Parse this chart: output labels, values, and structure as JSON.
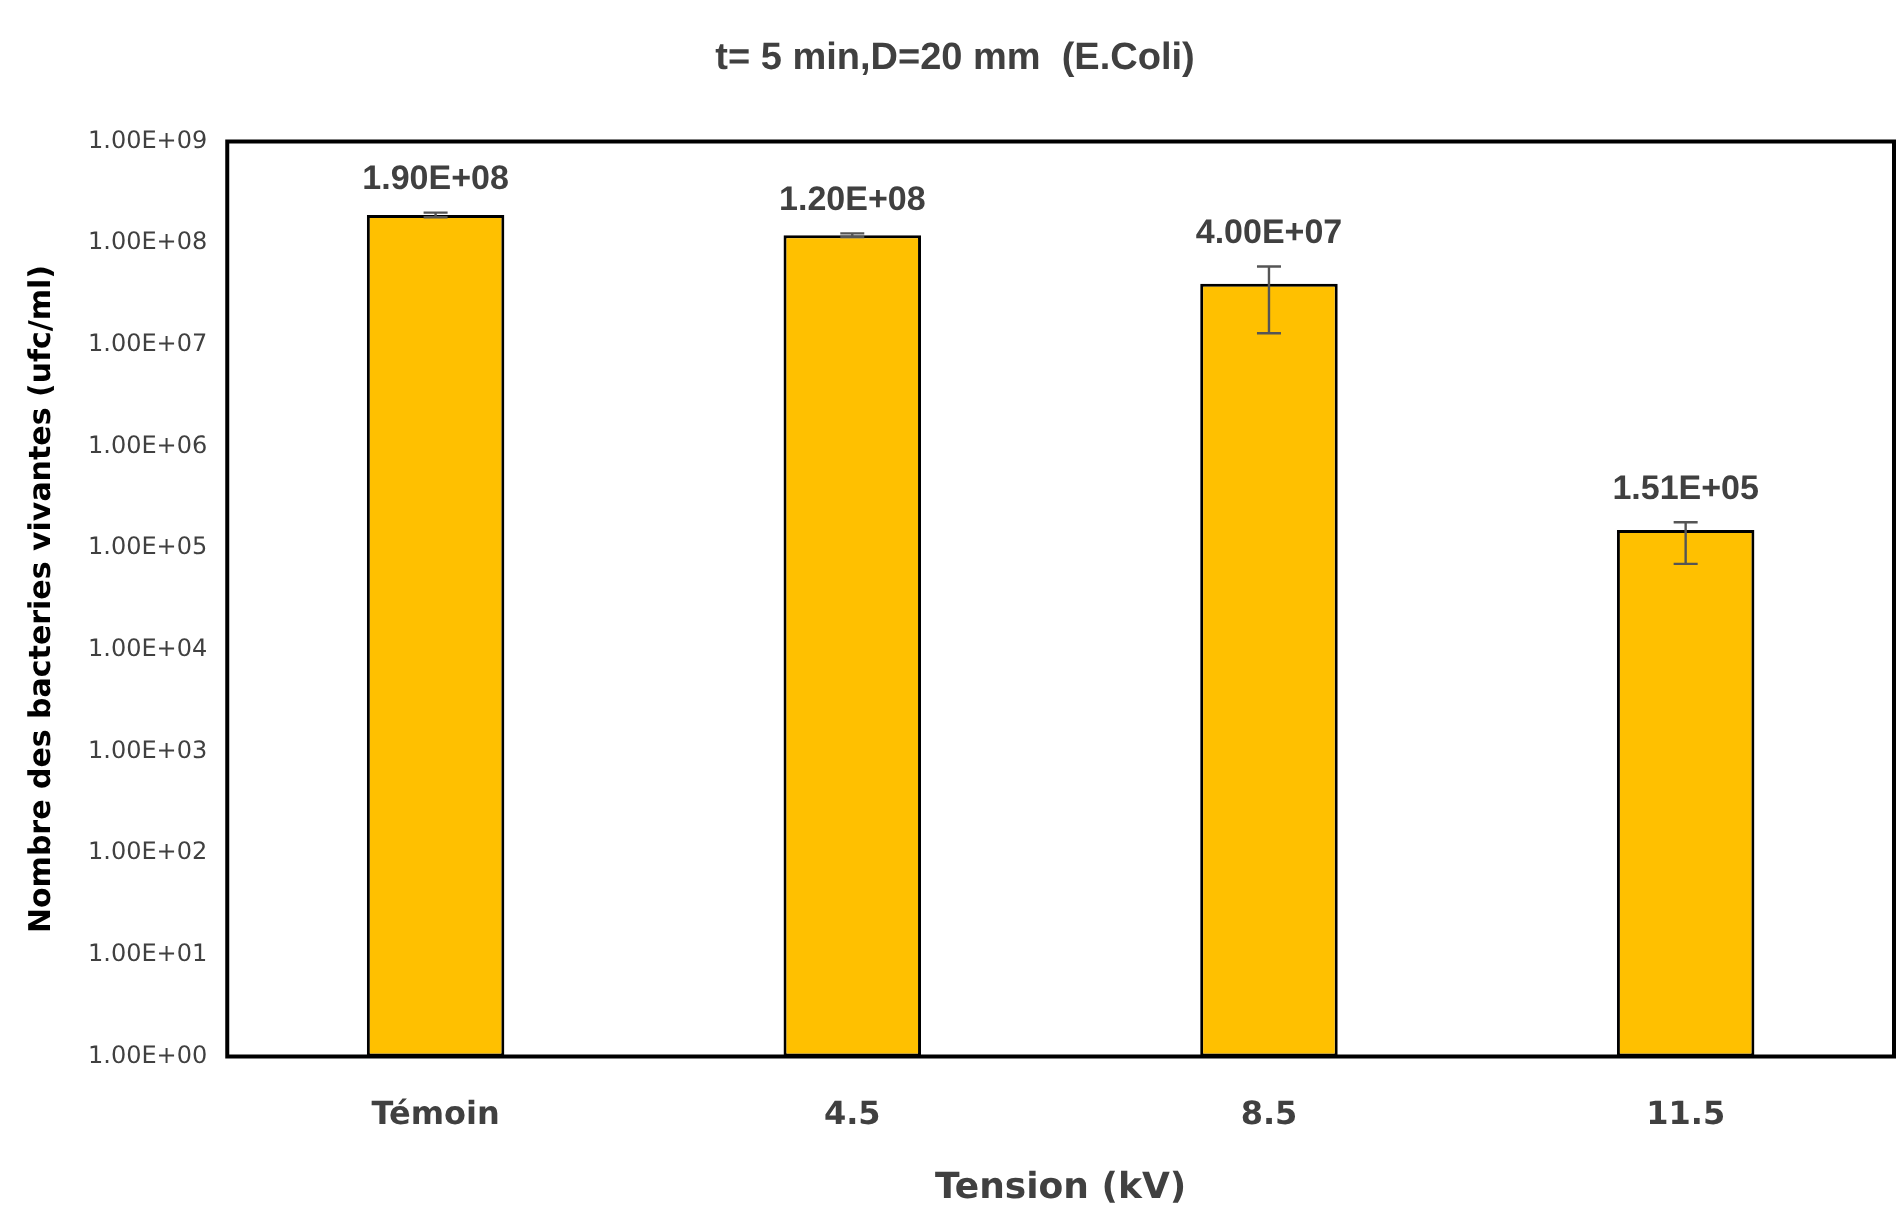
{
  "chart_data": {
    "type": "bar",
    "title": "t= 5 min,D=20 mm  (E.Coli)",
    "xlabel": "Tension (kV)",
    "ylabel": "Nombre des bacteries vivantes (ufc/ml)",
    "categories": [
      "Témoin",
      "4.5",
      "8.5",
      "11.5"
    ],
    "values": [
      190000000,
      120000000,
      40000000,
      151000
    ],
    "color": "#ffc000",
    "errors": [
      [
        180000000,
        200000000
      ],
      [
        115000000,
        125000000
      ],
      [
        13000000,
        59000000
      ],
      [
        70000,
        180000
      ]
    ],
    "value_labels": [
      "1.90E+08",
      "1.20E+08",
      "4.00E+07",
      "1.51E+05"
    ],
    "log": true,
    "ylim": [
      1,
      1000000000
    ],
    "yticks": [
      {
        "value": 1,
        "label": "1.00E+00"
      },
      {
        "value": 10,
        "label": "1.00E+01"
      },
      {
        "value": 100,
        "label": "1.00E+02"
      },
      {
        "value": 1000,
        "label": "1.00E+03"
      },
      {
        "value": 10000,
        "label": "1.00E+04"
      },
      {
        "value": 100000,
        "label": "1.00E+05"
      },
      {
        "value": 1000000,
        "label": "1.00E+06"
      },
      {
        "value": 10000000,
        "label": "1.00E+07"
      },
      {
        "value": 100000000,
        "label": "1.00E+08"
      },
      {
        "value": 1000000000,
        "label": "1.00E+09"
      }
    ],
    "grid": false,
    "legend": false
  }
}
